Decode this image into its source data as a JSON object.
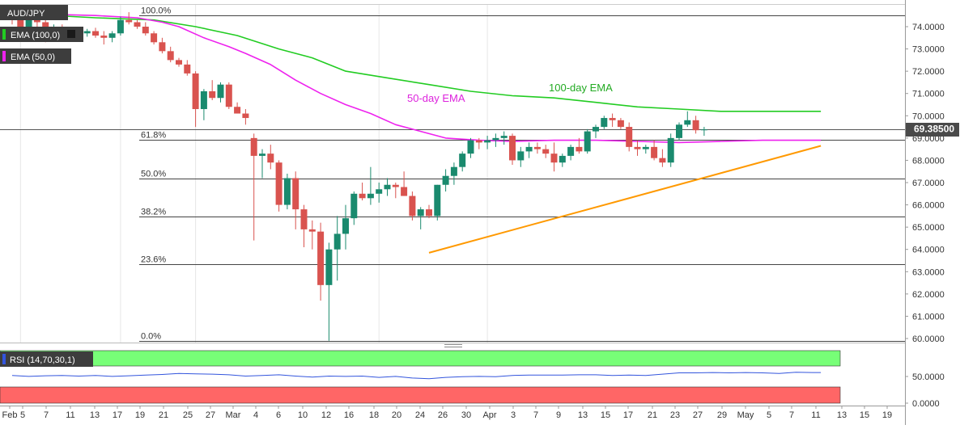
{
  "chart_data": {
    "type": "candlestick",
    "symbol": "AUD/JPY",
    "legend": {
      "ema100": "EMA (100,0)",
      "ema50": "EMA (50,0)",
      "rsi": "RSI (14,70,30,1)"
    },
    "last_price": "69.38500",
    "annotations": {
      "ema100": "100-day EMA",
      "ema50": "50-day EMA"
    },
    "colors": {
      "up": "#1a8a6e",
      "down": "#d9534f",
      "ema100": "#22cc22",
      "ema50": "#ee22ee",
      "trendline": "#ff9900",
      "rsi_line": "#3355dd",
      "rsi_overbought": "#77ff77",
      "rsi_oversold": "#ff6666",
      "price_tag": "#4a4a4a"
    },
    "price_axis": {
      "min": 59.8,
      "max": 75.2,
      "ticks": [
        "74.0000",
        "73.0000",
        "72.0000",
        "71.0000",
        "70.0000",
        "69.0000",
        "68.0000",
        "67.0000",
        "66.0000",
        "65.0000",
        "64.0000",
        "63.0000",
        "62.0000",
        "61.0000",
        "60.0000"
      ]
    },
    "rsi_axis": {
      "ticks": [
        "50.0000",
        "0.0000"
      ]
    },
    "x_labels": [
      "Feb",
      "5",
      "7",
      "11",
      "13",
      "17",
      "19",
      "21",
      "25",
      "27",
      "Mar",
      "4",
      "6",
      "10",
      "12",
      "16",
      "18",
      "20",
      "24",
      "26",
      "30",
      "Apr",
      "3",
      "7",
      "9",
      "13",
      "15",
      "17",
      "21",
      "23",
      "27",
      "29",
      "May",
      "5",
      "7",
      "11",
      "13",
      "15",
      "19"
    ],
    "fib_levels": [
      {
        "label": "100.0%",
        "price": 74.5
      },
      {
        "label": "61.8%",
        "price": 68.92
      },
      {
        "label": "50.0%",
        "price": 67.18
      },
      {
        "label": "38.2%",
        "price": 65.48
      },
      {
        "label": "23.6%",
        "price": 63.35
      },
      {
        "label": "0.0%",
        "price": 59.9
      }
    ],
    "trendline": [
      {
        "i": 50,
        "price": 63.85
      },
      {
        "i": 97,
        "price": 68.65
      }
    ],
    "ohlc": [
      [
        74.55,
        74.6,
        74.1,
        74.3
      ],
      [
        74.3,
        74.4,
        73.6,
        73.8
      ],
      [
        73.8,
        74.4,
        73.7,
        74.3
      ],
      [
        74.3,
        74.5,
        73.9,
        74.2
      ],
      [
        74.2,
        74.3,
        73.3,
        73.5
      ],
      [
        73.6,
        74.1,
        73.5,
        73.9
      ],
      [
        73.9,
        74.1,
        73.7,
        73.85
      ],
      [
        73.85,
        73.95,
        73.6,
        73.8
      ],
      [
        73.8,
        73.95,
        73.6,
        73.7
      ],
      [
        73.7,
        73.9,
        73.55,
        73.8
      ],
      [
        73.8,
        73.95,
        73.5,
        73.6
      ],
      [
        73.6,
        73.8,
        73.2,
        73.5
      ],
      [
        73.5,
        73.8,
        73.3,
        73.7
      ],
      [
        73.7,
        74.45,
        73.6,
        74.3
      ],
      [
        74.3,
        74.65,
        74.1,
        74.2
      ],
      [
        74.2,
        74.3,
        73.9,
        74.0
      ],
      [
        74.0,
        74.2,
        73.6,
        73.7
      ],
      [
        73.7,
        73.8,
        73.2,
        73.3
      ],
      [
        73.3,
        73.5,
        72.8,
        72.9
      ],
      [
        72.9,
        73.1,
        72.4,
        72.5
      ],
      [
        72.5,
        72.6,
        72.2,
        72.3
      ],
      [
        72.3,
        72.5,
        71.8,
        71.9
      ],
      [
        71.9,
        72.0,
        69.5,
        70.3
      ],
      [
        70.3,
        71.2,
        69.8,
        71.1
      ],
      [
        71.1,
        71.6,
        70.7,
        70.8
      ],
      [
        70.8,
        71.5,
        70.6,
        71.4
      ],
      [
        71.4,
        71.5,
        70.3,
        70.4
      ],
      [
        70.4,
        70.6,
        70.1,
        70.1
      ],
      [
        70.1,
        70.3,
        69.6,
        69.9
      ],
      [
        69.0,
        69.2,
        64.4,
        68.2
      ],
      [
        68.2,
        68.5,
        67.2,
        68.3
      ],
      [
        68.3,
        68.7,
        67.6,
        67.9
      ],
      [
        67.9,
        68.0,
        65.7,
        66.0
      ],
      [
        66.0,
        67.4,
        65.8,
        67.2
      ],
      [
        67.2,
        67.5,
        64.9,
        65.8
      ],
      [
        65.8,
        66.0,
        64.1,
        64.9
      ],
      [
        64.9,
        65.3,
        64.0,
        64.8
      ],
      [
        64.8,
        65.2,
        61.7,
        62.4
      ],
      [
        62.4,
        64.3,
        59.9,
        64.0
      ],
      [
        64.0,
        65.5,
        62.6,
        64.7
      ],
      [
        64.7,
        66.0,
        64.0,
        65.4
      ],
      [
        65.4,
        66.6,
        65.1,
        66.5
      ],
      [
        66.5,
        67.0,
        66.2,
        66.3
      ],
      [
        66.3,
        67.7,
        66.0,
        66.5
      ],
      [
        66.5,
        67.0,
        66.1,
        66.7
      ],
      [
        66.7,
        67.2,
        66.4,
        66.9
      ],
      [
        66.9,
        67.0,
        66.3,
        66.8
      ],
      [
        66.8,
        67.5,
        66.4,
        66.4
      ],
      [
        66.4,
        66.6,
        65.3,
        65.5
      ],
      [
        65.5,
        65.9,
        64.9,
        65.8
      ],
      [
        65.8,
        66.0,
        65.4,
        65.5
      ],
      [
        65.5,
        66.9,
        65.3,
        66.9
      ],
      [
        66.9,
        67.6,
        66.6,
        67.3
      ],
      [
        67.3,
        67.9,
        66.9,
        67.7
      ],
      [
        67.7,
        68.4,
        67.5,
        68.3
      ],
      [
        68.3,
        69.0,
        68.1,
        68.9
      ],
      [
        68.9,
        69.0,
        68.5,
        68.8
      ],
      [
        68.8,
        69.1,
        68.5,
        68.9
      ],
      [
        68.9,
        69.2,
        68.6,
        69.0
      ],
      [
        69.0,
        69.3,
        68.7,
        69.1
      ],
      [
        69.1,
        69.2,
        67.8,
        68.0
      ],
      [
        68.0,
        68.6,
        67.7,
        68.4
      ],
      [
        68.4,
        68.8,
        68.1,
        68.6
      ],
      [
        68.6,
        68.8,
        68.3,
        68.5
      ],
      [
        68.5,
        68.7,
        68.1,
        68.3
      ],
      [
        68.3,
        68.8,
        67.5,
        67.9
      ],
      [
        67.9,
        68.3,
        67.7,
        68.2
      ],
      [
        68.2,
        68.7,
        68.0,
        68.6
      ],
      [
        68.6,
        69.0,
        68.3,
        68.4
      ],
      [
        68.4,
        69.4,
        68.3,
        69.3
      ],
      [
        69.3,
        69.6,
        69.0,
        69.5
      ],
      [
        69.5,
        70.0,
        69.4,
        69.9
      ],
      [
        69.9,
        70.1,
        69.5,
        69.8
      ],
      [
        69.8,
        69.9,
        69.4,
        69.5
      ],
      [
        69.5,
        69.7,
        68.4,
        68.6
      ],
      [
        68.6,
        68.9,
        68.2,
        68.5
      ],
      [
        68.5,
        68.7,
        68.3,
        68.6
      ],
      [
        68.6,
        68.9,
        68.0,
        68.1
      ],
      [
        68.1,
        68.5,
        67.7,
        67.9
      ],
      [
        67.9,
        69.2,
        67.7,
        69.0
      ],
      [
        69.0,
        69.7,
        68.9,
        69.6
      ],
      [
        69.6,
        70.2,
        69.5,
        69.8
      ],
      [
        69.8,
        70.0,
        69.2,
        69.35
      ],
      [
        69.35,
        69.5,
        69.1,
        69.385
      ]
    ],
    "ema100": [
      [
        0,
        74.6
      ],
      [
        10,
        74.4
      ],
      [
        17,
        74.3
      ],
      [
        22,
        74.0
      ],
      [
        27,
        73.6
      ],
      [
        32,
        73.0
      ],
      [
        36,
        72.6
      ],
      [
        40,
        72.0
      ],
      [
        45,
        71.7
      ],
      [
        50,
        71.4
      ],
      [
        55,
        71.1
      ],
      [
        60,
        70.9
      ],
      [
        65,
        70.8
      ],
      [
        70,
        70.6
      ],
      [
        75,
        70.4
      ],
      [
        80,
        70.3
      ],
      [
        85,
        70.2
      ],
      [
        90,
        70.2
      ],
      [
        97,
        70.2
      ]
    ],
    "ema50": [
      [
        0,
        74.6
      ],
      [
        10,
        74.5
      ],
      [
        15,
        74.4
      ],
      [
        18,
        74.2
      ],
      [
        20,
        74.0
      ],
      [
        23,
        73.5
      ],
      [
        26,
        73.1
      ],
      [
        28,
        72.8
      ],
      [
        31,
        72.3
      ],
      [
        34,
        71.6
      ],
      [
        37,
        71.0
      ],
      [
        40,
        70.5
      ],
      [
        43,
        70.1
      ],
      [
        46,
        69.6
      ],
      [
        49,
        69.3
      ],
      [
        52,
        69.0
      ],
      [
        56,
        68.9
      ],
      [
        60,
        68.85
      ],
      [
        65,
        68.9
      ],
      [
        70,
        68.9
      ],
      [
        75,
        68.85
      ],
      [
        80,
        68.8
      ],
      [
        85,
        68.85
      ],
      [
        90,
        68.9
      ],
      [
        97,
        68.9
      ]
    ],
    "rsi_plot": [
      [
        0,
        52
      ],
      [
        2,
        49
      ],
      [
        4,
        51
      ],
      [
        6,
        52
      ],
      [
        8,
        50
      ],
      [
        10,
        52
      ],
      [
        12,
        49
      ],
      [
        14,
        51
      ],
      [
        16,
        53
      ],
      [
        18,
        55
      ],
      [
        20,
        58
      ],
      [
        22,
        57
      ],
      [
        24,
        56
      ],
      [
        26,
        54
      ],
      [
        28,
        50
      ],
      [
        30,
        52
      ],
      [
        32,
        54
      ],
      [
        34,
        50
      ],
      [
        36,
        47
      ],
      [
        38,
        50
      ],
      [
        40,
        49
      ],
      [
        42,
        50
      ],
      [
        44,
        46
      ],
      [
        46,
        49
      ],
      [
        48,
        44
      ],
      [
        50,
        42
      ],
      [
        52,
        46
      ],
      [
        54,
        48
      ],
      [
        56,
        49
      ],
      [
        58,
        48
      ],
      [
        60,
        52
      ],
      [
        62,
        53
      ],
      [
        64,
        53
      ],
      [
        66,
        53
      ],
      [
        68,
        54
      ],
      [
        70,
        54
      ],
      [
        72,
        52
      ],
      [
        74,
        53
      ],
      [
        76,
        52
      ],
      [
        78,
        56
      ],
      [
        80,
        60
      ],
      [
        82,
        60
      ],
      [
        84,
        61
      ],
      [
        86,
        60
      ],
      [
        88,
        61
      ],
      [
        90,
        60
      ],
      [
        92,
        58
      ],
      [
        94,
        62
      ],
      [
        96,
        61
      ],
      [
        97,
        61
      ]
    ]
  }
}
